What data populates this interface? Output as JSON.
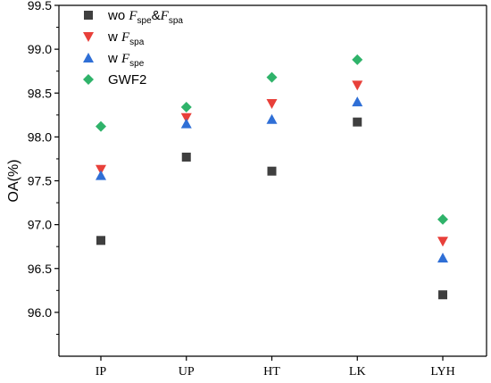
{
  "chart_data": {
    "type": "scatter",
    "title": "",
    "xlabel": "",
    "ylabel": "OA(%)",
    "ylim": [
      95.5,
      99.5
    ],
    "yticks": [
      "96.0",
      "96.5",
      "97.0",
      "97.5",
      "98.0",
      "98.5",
      "99.0",
      "99.5"
    ],
    "categories": [
      "IP",
      "UP",
      "HT",
      "LK",
      "LYH"
    ],
    "grid": false,
    "legend_position": "top-left",
    "series": [
      {
        "key": "wo",
        "legend": {
          "prefix": "wo ",
          "f1": "F",
          "s1": "spe",
          "amp": "&",
          "f2": "F",
          "s2": "spa"
        },
        "marker": "square",
        "color": "#3f3f3f",
        "values": [
          96.82,
          97.77,
          97.61,
          98.17,
          96.2
        ]
      },
      {
        "key": "w_spa",
        "legend": {
          "prefix": "w ",
          "f1": "F",
          "s1": "spa"
        },
        "marker": "triangle-down",
        "color": "#e8403a",
        "values": [
          97.63,
          98.22,
          98.38,
          98.59,
          96.81
        ]
      },
      {
        "key": "w_spe",
        "legend": {
          "prefix": "w ",
          "f1": "F",
          "s1": "spe"
        },
        "marker": "triangle-up",
        "color": "#2f6fd6",
        "values": [
          97.56,
          98.15,
          98.2,
          98.4,
          96.62
        ]
      },
      {
        "key": "gwf2",
        "legend": {
          "prefix": "GWF2"
        },
        "marker": "diamond",
        "color": "#2fb36a",
        "values": [
          98.12,
          98.34,
          98.68,
          98.88,
          97.06
        ]
      }
    ]
  }
}
